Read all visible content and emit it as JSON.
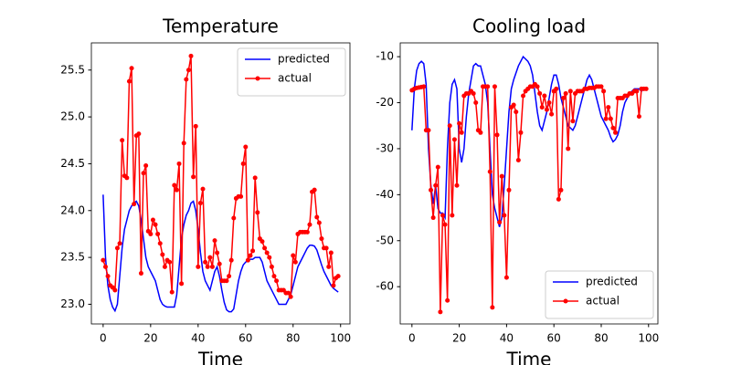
{
  "chart_data": [
    {
      "type": "line",
      "title": "Temperature",
      "x_label": "Time",
      "x": [
        0,
        1,
        2,
        3,
        4,
        5,
        6,
        7,
        8,
        9,
        10,
        11,
        12,
        13,
        14,
        15,
        16,
        17,
        18,
        19,
        20,
        21,
        22,
        23,
        24,
        25,
        26,
        27,
        28,
        29,
        30,
        31,
        32,
        33,
        34,
        35,
        36,
        37,
        38,
        39,
        40,
        41,
        42,
        43,
        44,
        45,
        46,
        47,
        48,
        49,
        50,
        51,
        52,
        53,
        54,
        55,
        56,
        57,
        58,
        59,
        60,
        61,
        62,
        63,
        64,
        65,
        66,
        67,
        68,
        69,
        70,
        71,
        72,
        73,
        74,
        75,
        76,
        77,
        78,
        79,
        80,
        81,
        82,
        83,
        84,
        85,
        86,
        87,
        88,
        89,
        90,
        91,
        92,
        93,
        94,
        95,
        96,
        97,
        98,
        99
      ],
      "series": [
        {
          "name": "predicted",
          "color": "#0000ff",
          "marker": null,
          "values": [
            24.17,
            23.5,
            23.2,
            23.05,
            22.97,
            22.93,
            23.0,
            23.3,
            23.6,
            23.8,
            23.9,
            24.0,
            24.05,
            24.08,
            24.1,
            24.05,
            23.9,
            23.7,
            23.5,
            23.4,
            23.35,
            23.3,
            23.25,
            23.15,
            23.05,
            23.0,
            22.98,
            22.97,
            22.97,
            22.97,
            22.97,
            23.1,
            23.4,
            23.7,
            23.85,
            23.95,
            24.0,
            24.08,
            24.1,
            24.0,
            23.8,
            23.55,
            23.35,
            23.25,
            23.2,
            23.15,
            23.25,
            23.35,
            23.4,
            23.3,
            23.15,
            23.02,
            22.94,
            22.92,
            22.92,
            22.95,
            23.1,
            23.25,
            23.35,
            23.42,
            23.45,
            23.47,
            23.48,
            23.48,
            23.5,
            23.5,
            23.5,
            23.45,
            23.35,
            23.25,
            23.2,
            23.15,
            23.1,
            23.05,
            23.0,
            23.0,
            23.0,
            23.0,
            23.05,
            23.1,
            23.2,
            23.3,
            23.4,
            23.45,
            23.5,
            23.55,
            23.6,
            23.63,
            23.63,
            23.62,
            23.58,
            23.5,
            23.42,
            23.35,
            23.3,
            23.25,
            23.2,
            23.17,
            23.15,
            23.13
          ]
        },
        {
          "name": "actual",
          "color": "#ff0000",
          "marker": "circle",
          "values": [
            23.47,
            23.4,
            23.3,
            23.2,
            23.18,
            23.15,
            23.6,
            23.65,
            24.75,
            24.37,
            24.35,
            25.38,
            25.52,
            24.07,
            24.8,
            24.82,
            23.33,
            24.4,
            24.48,
            23.78,
            23.75,
            23.9,
            23.85,
            23.75,
            23.65,
            23.53,
            23.4,
            23.47,
            23.45,
            23.13,
            24.27,
            24.22,
            24.5,
            23.22,
            24.72,
            25.4,
            25.5,
            25.65,
            24.36,
            24.9,
            23.4,
            24.08,
            24.23,
            23.45,
            23.4,
            23.5,
            23.4,
            23.68,
            23.55,
            23.43,
            23.25,
            23.25,
            23.25,
            23.3,
            23.47,
            23.92,
            24.13,
            24.15,
            24.15,
            24.5,
            24.68,
            23.47,
            23.52,
            23.57,
            24.35,
            23.98,
            23.7,
            23.67,
            23.6,
            23.55,
            23.5,
            23.4,
            23.3,
            23.25,
            23.15,
            23.15,
            23.15,
            23.12,
            23.12,
            23.08,
            23.52,
            23.45,
            23.75,
            23.77,
            23.77,
            23.77,
            23.77,
            23.85,
            24.2,
            24.22,
            23.93,
            23.87,
            23.7,
            23.6,
            23.6,
            23.4,
            23.55,
            23.2,
            23.28,
            23.3
          ]
        }
      ],
      "xlim": [
        -4.95,
        103.95
      ],
      "xticks": [
        0,
        20,
        40,
        60,
        80,
        100
      ],
      "ylim": [
        22.79,
        25.79
      ],
      "yticks": [
        {
          "value": 23,
          "label": "23.0"
        },
        23.5,
        {
          "value": 24,
          "label": "24.0"
        },
        24.5,
        {
          "value": 25,
          "label": "25.0"
        },
        25.5
      ],
      "legend": "upper right",
      "grid": false
    },
    {
      "type": "line",
      "title": "Cooling load",
      "x_label": "Time",
      "x": [
        0,
        1,
        2,
        3,
        4,
        5,
        6,
        7,
        8,
        9,
        10,
        11,
        12,
        13,
        14,
        15,
        16,
        17,
        18,
        19,
        20,
        21,
        22,
        23,
        24,
        25,
        26,
        27,
        28,
        29,
        30,
        31,
        32,
        33,
        34,
        35,
        36,
        37,
        38,
        39,
        40,
        41,
        42,
        43,
        44,
        45,
        46,
        47,
        48,
        49,
        50,
        51,
        52,
        53,
        54,
        55,
        56,
        57,
        58,
        59,
        60,
        61,
        62,
        63,
        64,
        65,
        66,
        67,
        68,
        69,
        70,
        71,
        72,
        73,
        74,
        75,
        76,
        77,
        78,
        79,
        80,
        81,
        82,
        83,
        84,
        85,
        86,
        87,
        88,
        89,
        90,
        91,
        92,
        93,
        94,
        95,
        96,
        97,
        98,
        99
      ],
      "series": [
        {
          "name": "predicted",
          "color": "#0000ff",
          "marker": null,
          "values": [
            -26,
            -17,
            -13,
            -11.5,
            -11,
            -11.5,
            -16,
            -30,
            -38,
            -42,
            -38,
            -43,
            -44,
            -44,
            -45,
            -30,
            -20,
            -16,
            -15,
            -17,
            -30,
            -33,
            -30,
            -23,
            -18,
            -15,
            -12,
            -11.5,
            -12,
            -12,
            -14,
            -16,
            -20,
            -30,
            -40,
            -43,
            -45,
            -47,
            -45,
            -38,
            -30,
            -22,
            -17,
            -15,
            -13.5,
            -12,
            -11,
            -10,
            -10.5,
            -11,
            -12,
            -14,
            -18,
            -22,
            -25,
            -26,
            -24,
            -22,
            -19,
            -16,
            -14,
            -14,
            -16,
            -19,
            -21,
            -23,
            -25,
            -25.5,
            -26,
            -25,
            -23,
            -21,
            -19,
            -17,
            -15,
            -14,
            -15,
            -17,
            -19,
            -21,
            -23,
            -24,
            -25,
            -26,
            -27.5,
            -28.5,
            -28,
            -27,
            -25,
            -22,
            -20,
            -19,
            -18,
            -17.5,
            -17,
            -17,
            -17,
            -17.5,
            -17,
            -17
          ]
        },
        {
          "name": "actual",
          "color": "#ff0000",
          "marker": "circle",
          "values": [
            -17.3,
            -17,
            -16.8,
            -16.7,
            -16.6,
            -16.5,
            -26,
            -26,
            -39,
            -45,
            -38,
            -34,
            -65.5,
            -44.5,
            -46.5,
            -63,
            -25,
            -44.5,
            -28,
            -38,
            -24.5,
            -26.5,
            -18.5,
            -18,
            -18,
            -17.5,
            -18,
            -20,
            -26,
            -26.5,
            -16.5,
            -16.5,
            -16.5,
            -35,
            -64.5,
            -16.5,
            -27,
            -46,
            -36,
            -44.5,
            -58,
            -39,
            -21,
            -20.5,
            -22,
            -32.5,
            -26.5,
            -18.5,
            -17.5,
            -17,
            -16.5,
            -16.5,
            -16,
            -16.5,
            -18,
            -21,
            -18.5,
            -21.5,
            -20,
            -22.5,
            -17.5,
            -17,
            -41,
            -39,
            -19,
            -18,
            -30,
            -17.5,
            -24,
            -18,
            -17.5,
            -17.5,
            -17.5,
            -17,
            -17,
            -16.8,
            -16.8,
            -16.8,
            -16.5,
            -16.5,
            -16.5,
            -17.5,
            -23.5,
            -21,
            -23.5,
            -25.5,
            -26.5,
            -19,
            -19,
            -19,
            -18.5,
            -18.5,
            -18,
            -18,
            -17.5,
            -17.5,
            -23,
            -17,
            -17,
            -17
          ]
        }
      ],
      "xlim": [
        -4.95,
        103.95
      ],
      "xticks": [
        0,
        20,
        40,
        60,
        80,
        100
      ],
      "ylim": [
        -68.1,
        -7.0
      ],
      "yticks": [
        -60,
        -50,
        -40,
        -30,
        -20,
        -10
      ],
      "legend": "lower right",
      "grid": false
    }
  ]
}
